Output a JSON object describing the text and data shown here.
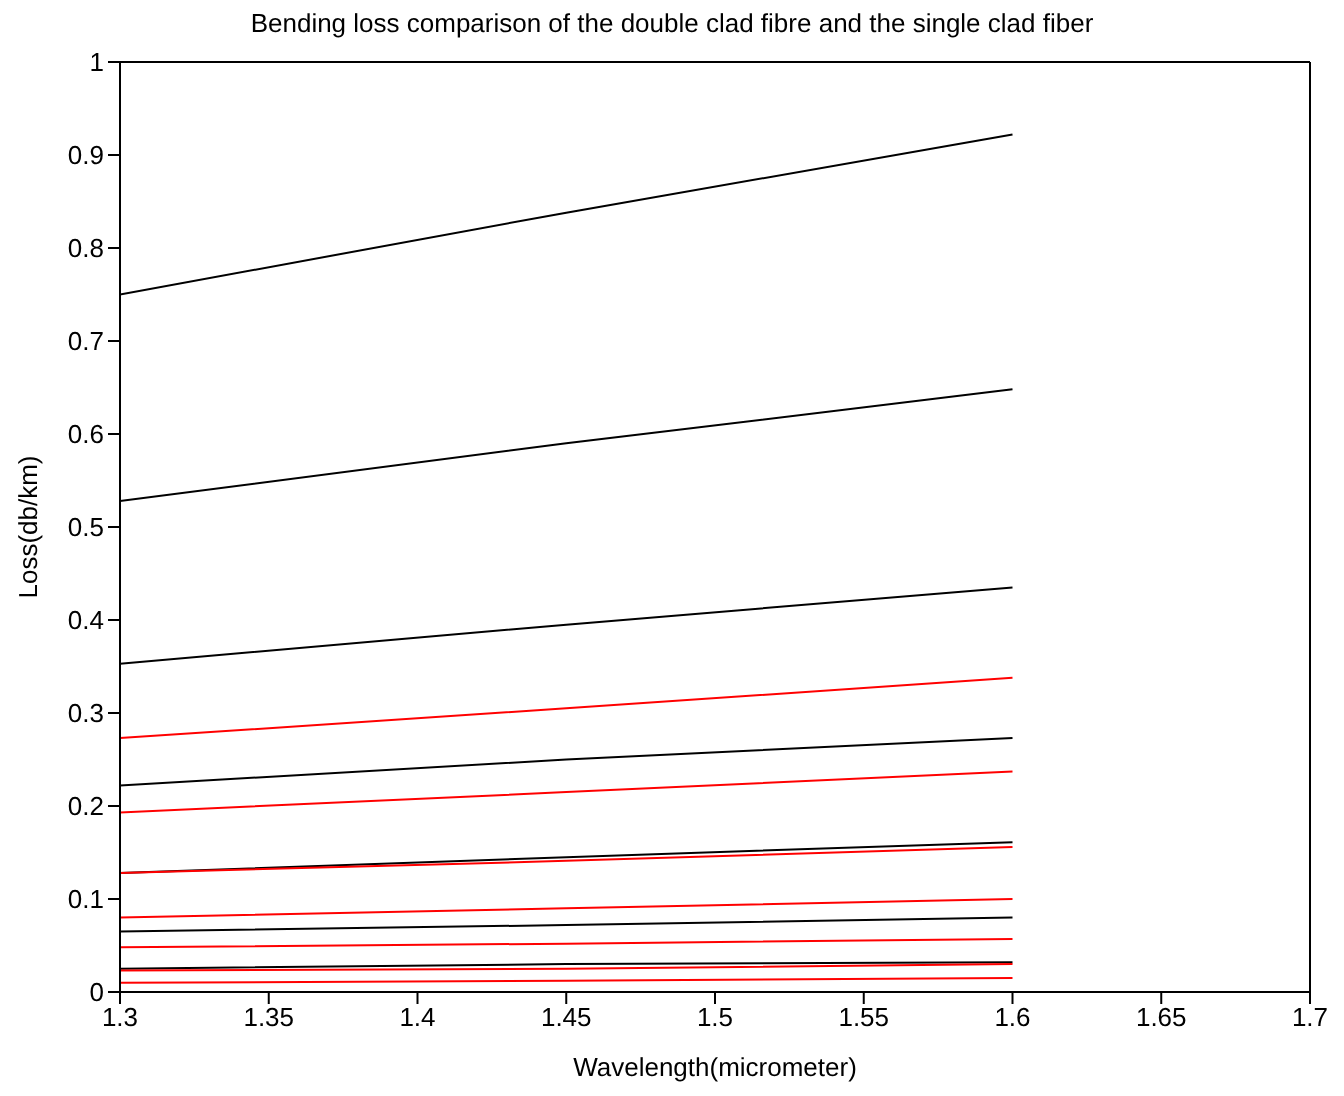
{
  "chart_data": {
    "type": "line",
    "title": "Bending loss comparison of the double clad fibre and the single clad fiber",
    "xlabel": "Wavelength(micrometer)",
    "ylabel": "Loss(db/km)",
    "x": [
      1.3,
      1.45,
      1.6
    ],
    "series": [
      {
        "color": "#000000",
        "values": [
          0.75,
          0.838,
          0.922
        ]
      },
      {
        "color": "#000000",
        "values": [
          0.528,
          0.59,
          0.648
        ]
      },
      {
        "color": "#000000",
        "values": [
          0.353,
          0.395,
          0.435
        ]
      },
      {
        "color": "#ff0000",
        "values": [
          0.273,
          0.305,
          0.338
        ]
      },
      {
        "color": "#000000",
        "values": [
          0.222,
          0.25,
          0.273
        ]
      },
      {
        "color": "#ff0000",
        "values": [
          0.193,
          0.215,
          0.237
        ]
      },
      {
        "color": "#000000",
        "values": [
          0.128,
          0.145,
          0.161
        ]
      },
      {
        "color": "#ff0000",
        "values": [
          0.128,
          0.141,
          0.156
        ]
      },
      {
        "color": "#ff0000",
        "values": [
          0.08,
          0.09,
          0.1
        ]
      },
      {
        "color": "#000000",
        "values": [
          0.065,
          0.072,
          0.08
        ]
      },
      {
        "color": "#ff0000",
        "values": [
          0.048,
          0.052,
          0.057
        ]
      },
      {
        "color": "#000000",
        "values": [
          0.025,
          0.03,
          0.032
        ]
      },
      {
        "color": "#ff0000",
        "values": [
          0.023,
          0.025,
          0.03
        ]
      },
      {
        "color": "#ff0000",
        "values": [
          0.01,
          0.012,
          0.015
        ]
      }
    ],
    "xlim": [
      1.3,
      1.7
    ],
    "xticks": [
      1.3,
      1.35,
      1.4,
      1.45,
      1.5,
      1.55,
      1.6,
      1.65,
      1.7
    ],
    "ylim": [
      0,
      1
    ],
    "yticks": [
      0,
      0.1,
      0.2,
      0.3,
      0.4,
      0.5,
      0.6,
      0.7,
      0.8,
      0.9,
      1
    ],
    "marker": "none",
    "line_style": "solid"
  }
}
